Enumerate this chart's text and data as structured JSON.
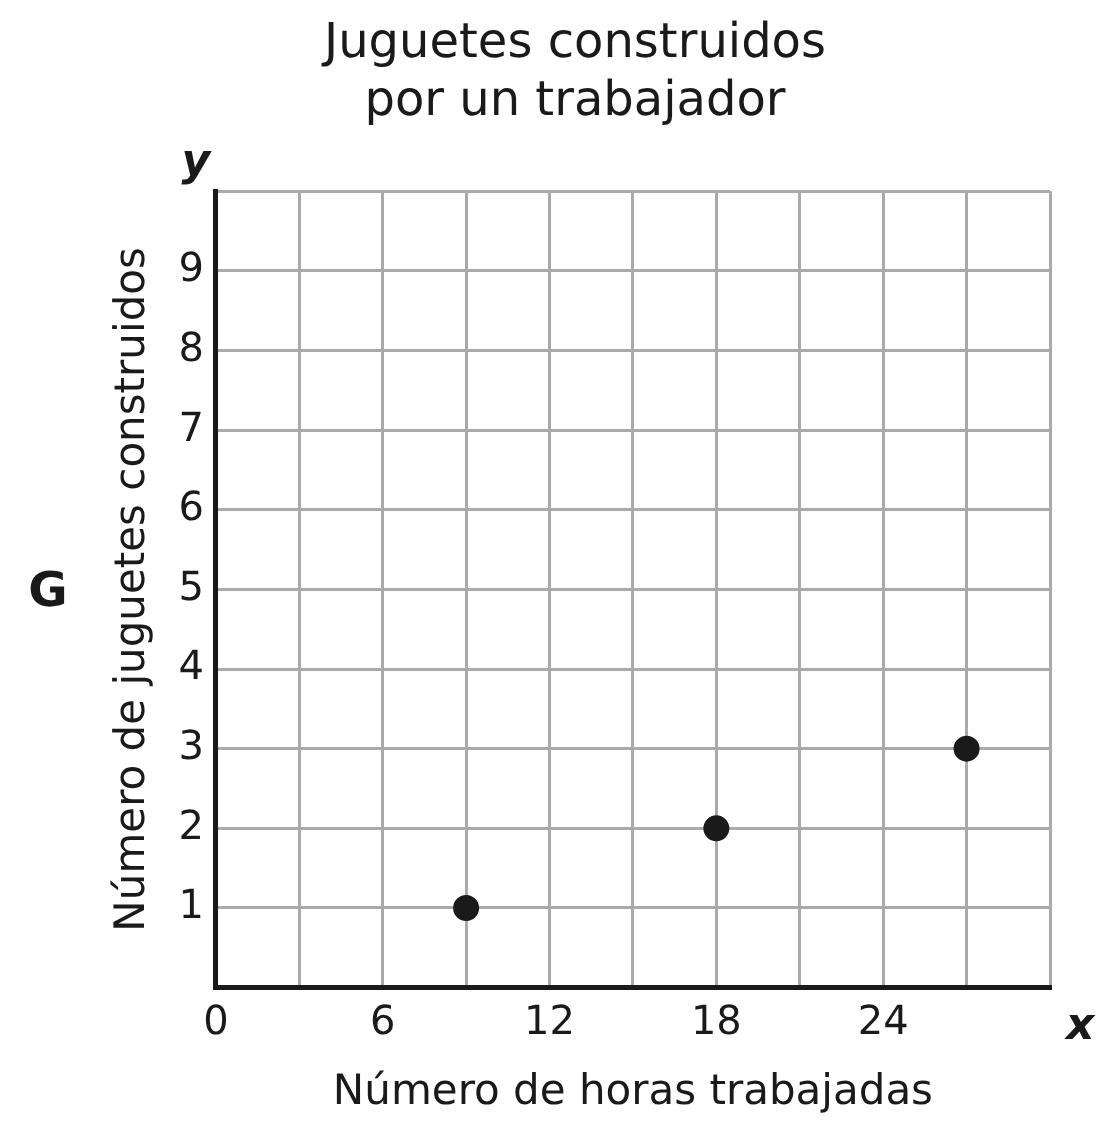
{
  "chart_data": {
    "type": "scatter",
    "title": "Juguetes construidos\npor un trabajador",
    "xlabel": "Número de horas trabajadas",
    "ylabel": "Número de juguetes construidos",
    "x": [
      9,
      18,
      27
    ],
    "values": [
      1,
      2,
      3
    ],
    "color": "#1a1a1a",
    "marker": "circle",
    "grid": true,
    "legend": false,
    "xlim": [
      0,
      30
    ],
    "xticks": [
      0,
      {
        "value": 3,
        "label": null
      },
      6,
      {
        "value": 9,
        "label": null
      },
      12,
      {
        "value": 15,
        "label": null
      },
      18,
      {
        "value": 21,
        "label": null
      },
      24,
      {
        "value": 27,
        "label": null
      },
      {
        "value": 30,
        "label": null
      }
    ],
    "ylim": [
      0,
      10
    ],
    "yticks": [
      {
        "value": 0,
        "label": null
      },
      1,
      2,
      3,
      4,
      5,
      6,
      7,
      8,
      9,
      {
        "value": 10,
        "label": null
      }
    ],
    "annotations": [
      "G",
      "y",
      "x"
    ]
  }
}
